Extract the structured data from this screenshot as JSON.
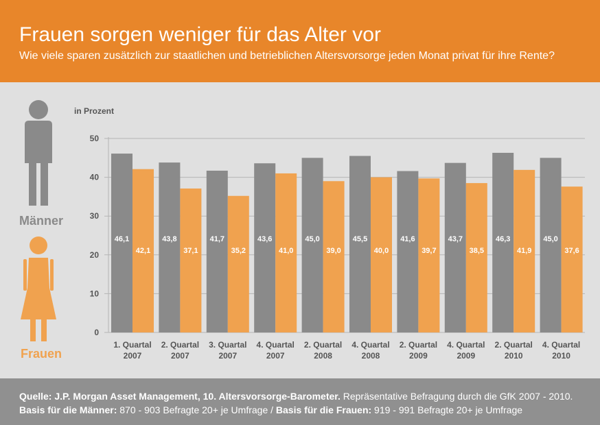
{
  "header": {
    "title": "Frauen sorgen weniger für das Alter vor",
    "subtitle": "Wie viele sparen zusätzlich zur staatlichen und betrieblichen Altersvorsorge jeden Monat privat für ihre Rente?"
  },
  "legend": {
    "men_label": "Männer",
    "women_label": "Frauen",
    "men_icon": "man-icon",
    "women_icon": "woman-icon"
  },
  "colors": {
    "accent": "#e8862a",
    "men_bar": "#8a8a8a",
    "women_bar": "#f0a24f",
    "men_label": "#8a8a8a",
    "women_label": "#f0a24f",
    "background": "#e0e0e0",
    "footer": "#909090"
  },
  "chart_data": {
    "type": "bar",
    "ylabel": "in Prozent",
    "ylim": [
      0,
      50
    ],
    "yticks": [
      "0",
      "10",
      "20",
      "30",
      "40",
      "50"
    ],
    "grid": true,
    "categories": [
      [
        "1. Quartal",
        "2007"
      ],
      [
        "2. Quartal",
        "2007"
      ],
      [
        "3. Quartal",
        "2007"
      ],
      [
        "4. Quartal",
        "2007"
      ],
      [
        "2. Quartal",
        "2008"
      ],
      [
        "4. Quartal",
        "2008"
      ],
      [
        "2. Quartal",
        "2009"
      ],
      [
        "4. Quartal",
        "2009"
      ],
      [
        "2. Quartal",
        "2010"
      ],
      [
        "4. Quartal",
        "2010"
      ]
    ],
    "series": [
      {
        "values": [
          46.1,
          43.8,
          41.7,
          43.6,
          45.0,
          45.5,
          41.6,
          43.7,
          46.3,
          45.0
        ],
        "labels": [
          "46,1",
          "43,8",
          "41,7",
          "43,6",
          "45,0",
          "45,5",
          "41,6",
          "43,7",
          "46,3",
          "45,0"
        ]
      },
      {
        "values": [
          42.1,
          37.1,
          35.2,
          41.0,
          39.0,
          40.0,
          39.7,
          38.5,
          41.9,
          37.6
        ],
        "labels": [
          "42,1",
          "37,1",
          "35,2",
          "41,0",
          "39,0",
          "40,0",
          "39,7",
          "38,5",
          "41,9",
          "37,6"
        ]
      }
    ]
  },
  "footer": {
    "line1_bold": "Quelle: J.P. Morgan Asset Management, 10. Altersvorsorge-Barometer.",
    "line1_rest": " Repräsentative Befragung durch die GfK 2007 - 2010.",
    "line2_bold1": "Basis für die Männer:",
    "line2_text1": " 870 - 903 Befragte 20+ je Umfrage / ",
    "line2_bold2": "Basis für die Frauen:",
    "line2_text2": " 919 - 991 Befragte 20+ je Umfrage"
  }
}
